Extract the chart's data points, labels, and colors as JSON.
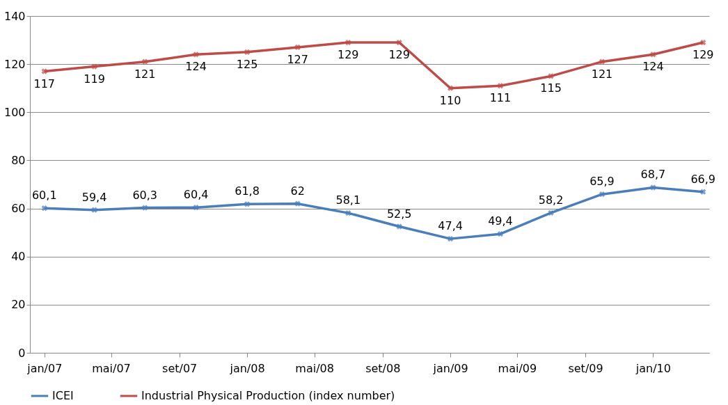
{
  "chart_data": {
    "type": "line",
    "x": [
      "2007-01",
      "2007-04",
      "2007-07",
      "2007-10",
      "2008-01",
      "2008-04",
      "2008-07",
      "2008-10",
      "2009-01",
      "2009-04",
      "2009-07",
      "2009-10",
      "2010-01",
      "2010-04"
    ],
    "series": [
      {
        "name": "ICEI",
        "color": "#4a7ebb",
        "values": [
          60.1,
          59.4,
          60.3,
          60.4,
          61.8,
          62,
          58.1,
          52.5,
          47.4,
          49.4,
          58.2,
          65.9,
          68.7,
          66.9
        ],
        "value_labels": [
          "60,1",
          "59,4",
          "60,3",
          "60,4",
          "61,8",
          "62",
          "58,1",
          "52,5",
          "47,4",
          "49,4",
          "58,2",
          "65,9",
          "68,7",
          "66,9"
        ]
      },
      {
        "name": "Industrial Physical Production (index number)",
        "color": "#be4b48",
        "values": [
          117,
          119,
          121,
          124,
          125,
          127,
          129,
          129,
          110,
          111,
          115,
          121,
          124,
          129
        ],
        "value_labels": [
          "117",
          "119",
          "121",
          "124",
          "125",
          "127",
          "129",
          "129",
          "110",
          "111",
          "115",
          "121",
          "124",
          "129"
        ]
      }
    ],
    "xlim": [
      "2006-12-06",
      "2010-04-12"
    ],
    "xticks": [
      {
        "value": "2007-01",
        "label": "jan/07"
      },
      {
        "value": "2007-05",
        "label": "mai/07"
      },
      {
        "value": "2007-09",
        "label": "set/07"
      },
      {
        "value": "2008-01",
        "label": "jan/08"
      },
      {
        "value": "2008-05",
        "label": "mai/08"
      },
      {
        "value": "2008-09",
        "label": "set/08"
      },
      {
        "value": "2009-01",
        "label": "jan/09"
      },
      {
        "value": "2009-05",
        "label": "mai/09"
      },
      {
        "value": "2009-09",
        "label": "set/09"
      },
      {
        "value": "2010-01",
        "label": "jan/10"
      }
    ],
    "ylim": [
      0,
      140
    ],
    "yticks": [
      0,
      20,
      40,
      60,
      80,
      100,
      120,
      140
    ],
    "grid": "y",
    "legend": "bottom",
    "marker": "cross",
    "line_style": "solid"
  }
}
